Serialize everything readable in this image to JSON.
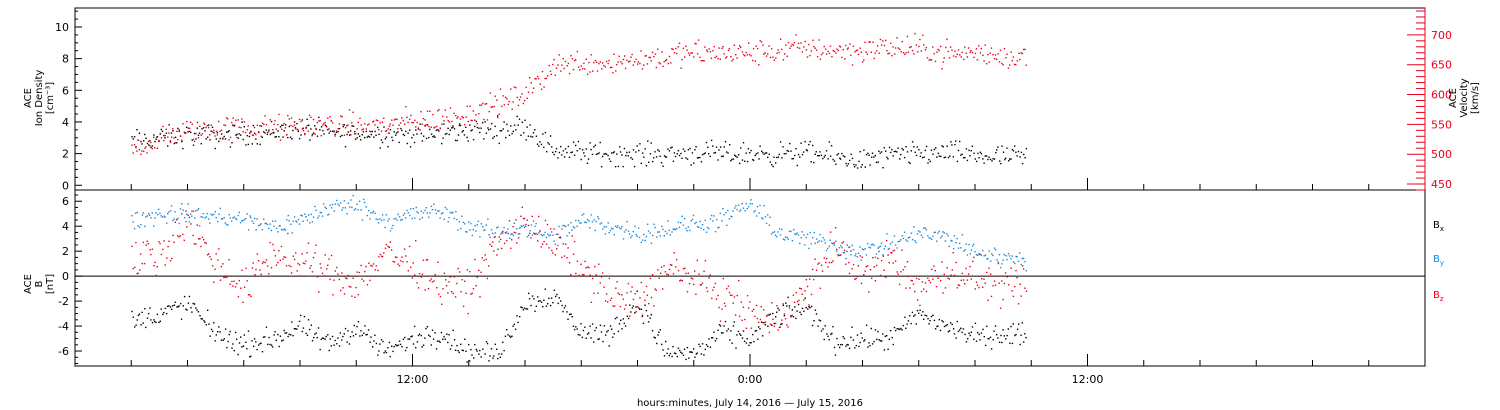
{
  "chart_data": [
    {
      "type": "scatter",
      "panel": "top",
      "y_left": {
        "label_lines": [
          "ACE",
          "Ion Density",
          "[cm⁻³]"
        ],
        "ylim": [
          -0.3,
          11.2
        ],
        "ticks": [
          "0",
          "2",
          "4",
          "6",
          "8",
          "10"
        ],
        "tick_values": [
          0,
          2,
          4,
          6,
          8,
          10
        ]
      },
      "y_right": {
        "label_lines": [
          "ACE",
          "Velocity",
          "[km/s]"
        ],
        "ylim": [
          440,
          745
        ],
        "ticks": [
          "450",
          "500",
          "550",
          "600",
          "650",
          "700"
        ],
        "tick_values": [
          450,
          500,
          550,
          600,
          650,
          700
        ],
        "color": "#e8001c"
      },
      "x_hours_range": [
        2.0,
        33.8
      ],
      "series": [
        {
          "key": "density",
          "color": "#000000",
          "axis": "left",
          "x_hours": [
            2.0,
            3.0,
            4.0,
            5.0,
            6.0,
            7.0,
            8.0,
            9.0,
            10.0,
            11.0,
            12.0,
            13.0,
            14.0,
            15.0,
            16.0,
            17.0,
            18.0,
            19.0,
            20.0,
            21.0,
            22.0,
            23.0,
            24.0,
            25.0,
            26.0,
            27.0,
            28.0,
            29.0,
            30.0,
            31.0,
            32.0,
            33.0
          ],
          "values": [
            2.8,
            3.0,
            3.2,
            3.1,
            3.3,
            3.4,
            3.6,
            3.4,
            3.3,
            3.3,
            3.2,
            3.3,
            3.5,
            3.6,
            3.8,
            2.3,
            2.1,
            2.0,
            2.0,
            2.0,
            2.1,
            2.0,
            2.0,
            2.0,
            2.1,
            1.8,
            1.6,
            1.9,
            2.0,
            2.1,
            1.9,
            1.8
          ],
          "spread": 0.55
        },
        {
          "key": "velocity",
          "color": "#e8001c",
          "axis": "right",
          "x_hours": [
            2.0,
            3.0,
            4.0,
            5.0,
            6.0,
            7.0,
            8.0,
            9.0,
            10.0,
            11.0,
            12.0,
            13.0,
            14.0,
            15.0,
            16.0,
            17.0,
            18.0,
            19.0,
            20.0,
            21.0,
            22.0,
            23.0,
            24.0,
            25.0,
            26.0,
            27.0,
            28.0,
            29.0,
            30.0,
            31.0,
            32.0,
            33.0
          ],
          "values": [
            510,
            525,
            540,
            545,
            545,
            545,
            548,
            550,
            548,
            550,
            556,
            560,
            568,
            585,
            600,
            650,
            655,
            655,
            660,
            665,
            670,
            670,
            670,
            675,
            680,
            675,
            675,
            680,
            678,
            670,
            670,
            665
          ],
          "spread": 16
        }
      ]
    },
    {
      "type": "scatter",
      "panel": "bottom",
      "y_left": {
        "label_lines": [
          "ACE",
          "B",
          "[nT]"
        ],
        "ylim": [
          -7.2,
          6.9
        ],
        "ticks": [
          "-6",
          "-4",
          "-2",
          "0",
          "2",
          "4",
          "6"
        ],
        "tick_values": [
          -6,
          -4,
          -2,
          0,
          2,
          4,
          6
        ]
      },
      "zero_line": true,
      "x_hours_range": [
        2.0,
        33.8
      ],
      "series": [
        {
          "key": "bx",
          "label": "B",
          "sub": "x",
          "color": "#000000",
          "x_hours": [
            2.0,
            3.0,
            4.0,
            5.0,
            6.0,
            7.0,
            8.0,
            9.0,
            10.0,
            11.0,
            12.0,
            13.0,
            14.0,
            15.0,
            16.0,
            17.0,
            18.0,
            19.0,
            20.0,
            21.0,
            22.0,
            23.0,
            24.0,
            25.0,
            26.0,
            27.0,
            28.0,
            29.0,
            30.0,
            31.0,
            32.0,
            33.0
          ],
          "values": [
            -3.5,
            -3.0,
            -2.2,
            -4.5,
            -5.5,
            -5.0,
            -4.0,
            -5.5,
            -4.0,
            -6.0,
            -5.0,
            -4.5,
            -6.0,
            -6.3,
            -2.0,
            -1.5,
            -4.5,
            -4.5,
            -2.0,
            -6.0,
            -6.2,
            -4.5,
            -5.0,
            -3.0,
            -2.5,
            -5.2,
            -5.0,
            -5.0,
            -3.0,
            -4.0,
            -4.8,
            -4.6
          ],
          "spread": 0.7
        },
        {
          "key": "by",
          "label": "B",
          "sub": "y",
          "color": "#1a88d8",
          "x_hours": [
            2.0,
            3.0,
            4.0,
            5.0,
            6.0,
            7.0,
            8.0,
            9.0,
            10.0,
            11.0,
            12.0,
            13.0,
            14.0,
            15.0,
            16.0,
            17.0,
            18.0,
            19.0,
            20.0,
            21.0,
            22.0,
            23.0,
            24.0,
            25.0,
            26.0,
            27.0,
            28.0,
            29.0,
            30.0,
            31.0,
            32.0,
            33.0
          ],
          "values": [
            4.5,
            5.0,
            5.0,
            4.8,
            4.5,
            4.0,
            4.5,
            5.5,
            5.8,
            4.5,
            5.0,
            5.2,
            4.0,
            3.5,
            4.0,
            3.0,
            4.5,
            4.0,
            3.5,
            3.8,
            4.2,
            4.5,
            5.8,
            3.5,
            3.0,
            2.5,
            2.0,
            2.5,
            3.5,
            3.0,
            2.0,
            1.5
          ],
          "spread": 0.6
        },
        {
          "key": "bz",
          "label": "B",
          "sub": "z",
          "color": "#e8001c",
          "x_hours": [
            2.0,
            3.0,
            4.0,
            5.0,
            6.0,
            7.0,
            8.0,
            9.0,
            10.0,
            11.0,
            12.0,
            13.0,
            14.0,
            15.0,
            16.0,
            17.0,
            18.0,
            19.0,
            20.0,
            21.0,
            22.0,
            23.0,
            24.0,
            25.0,
            26.0,
            27.0,
            28.0,
            29.0,
            30.0,
            31.0,
            32.0,
            33.0
          ],
          "values": [
            1.0,
            2.0,
            4.5,
            1.0,
            -1.0,
            2.0,
            1.0,
            0.5,
            -0.5,
            2.0,
            1.0,
            -0.5,
            -1.0,
            2.5,
            4.5,
            2.5,
            1.0,
            -1.5,
            -2.0,
            0.5,
            0.0,
            -1.5,
            -3.0,
            -3.5,
            -1.0,
            2.5,
            0.0,
            1.5,
            -1.0,
            0.5,
            0.0,
            -1.0
          ],
          "spread": 1.2
        }
      ]
    }
  ],
  "x_axis": {
    "title": "hours:minutes, July 14, 2016 — July 15, 2016",
    "range_hours": [
      0,
      48
    ],
    "major_labels": [
      {
        "hour": 12,
        "label": "12:00"
      },
      {
        "hour": 24,
        "label": "0:00"
      },
      {
        "hour": 36,
        "label": "12:00"
      }
    ],
    "minor_step_hours": 2
  }
}
